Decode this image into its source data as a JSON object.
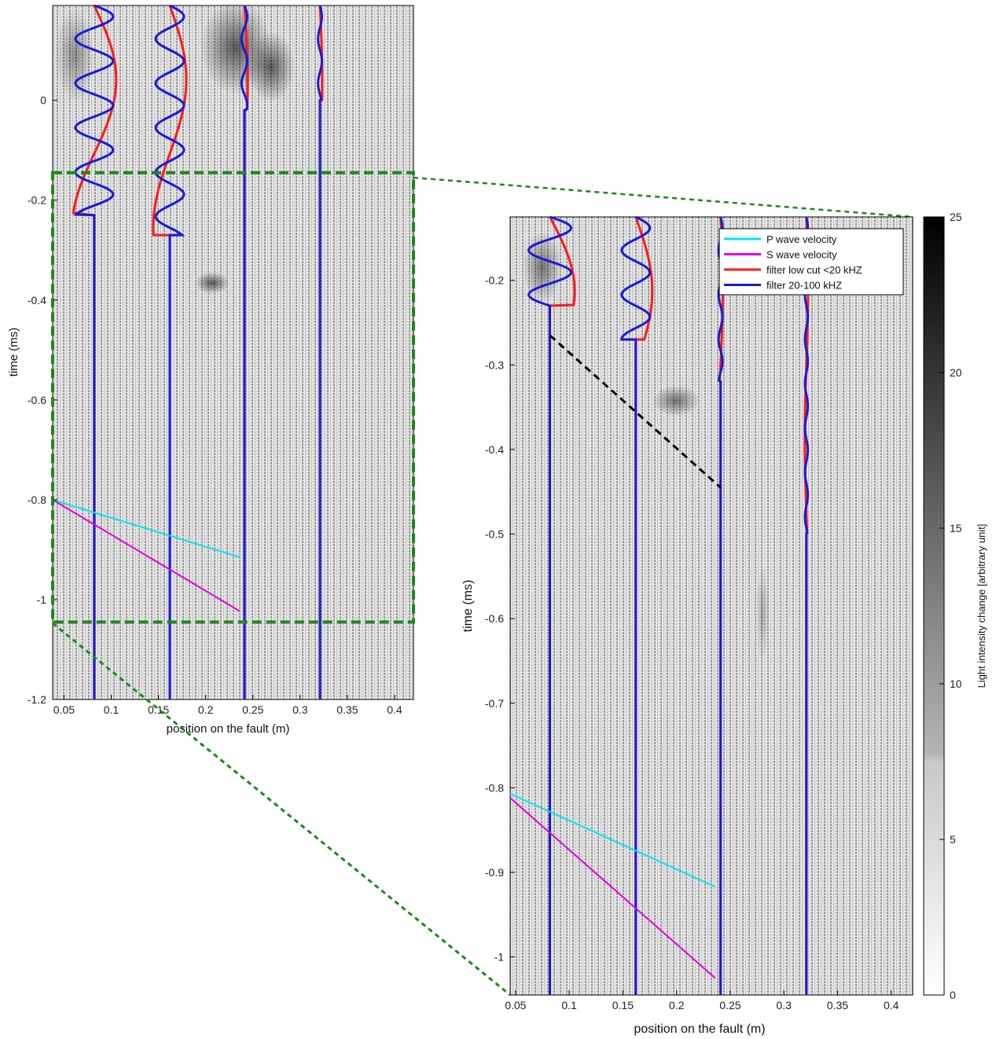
{
  "chart_data": [
    {
      "type": "heatmap",
      "panel": "overview",
      "xlabel": "position on the fault  (m)",
      "ylabel": "time (ms)",
      "xlim": [
        0.038,
        0.42
      ],
      "ylim": [
        -1.2,
        0.19
      ],
      "xticks": [
        0.05,
        0.1,
        0.15,
        0.2,
        0.25,
        0.3,
        0.35,
        0.4
      ],
      "xtick_labels": [
        "0.05",
        "0.1",
        "0.15",
        "0.2",
        "0.25",
        "0.3",
        "0.35",
        "0.4"
      ],
      "yticks": [
        0,
        -0.2,
        -0.4,
        -0.6,
        -0.8,
        -1,
        -1.2
      ],
      "ytick_labels": [
        "0",
        "-0.2",
        "-0.4",
        "-0.6",
        "-0.8",
        "-1",
        "-1.2"
      ],
      "zoom_box": {
        "x": [
          0.038,
          0.42
        ],
        "y": [
          -1.045,
          -0.145
        ]
      },
      "zoom_box_color": "#1a8a1a",
      "sensor_positions": [
        0.082,
        0.162,
        0.241,
        0.321
      ],
      "series": [
        {
          "name": "P wave velocity",
          "color": "#00e5ee",
          "x": [
            0.038,
            0.236
          ],
          "y": [
            -0.8,
            -0.915
          ]
        },
        {
          "name": "S wave velocity",
          "color": "#e000e0",
          "x": [
            0.038,
            0.236
          ],
          "y": [
            -0.8,
            -1.023
          ]
        }
      ]
    },
    {
      "type": "heatmap",
      "panel": "zoom",
      "xlabel": "position on the fault  (m)",
      "ylabel": "time (ms)",
      "xlim": [
        0.045,
        0.42
      ],
      "ylim": [
        -1.045,
        -0.125
      ],
      "xticks": [
        0.05,
        0.1,
        0.15,
        0.2,
        0.25,
        0.3,
        0.35,
        0.4
      ],
      "xtick_labels": [
        "0.05",
        "0.1",
        "0.15",
        "0.2",
        "0.25",
        "0.3",
        "0.35",
        "0.4"
      ],
      "yticks": [
        -0.2,
        -0.3,
        -0.4,
        -0.5,
        -0.6,
        -0.7,
        -0.8,
        -0.9,
        -1
      ],
      "ytick_labels": [
        "-0.2",
        "-0.3",
        "-0.4",
        "-0.5",
        "-0.6",
        "-0.7",
        "-0.8",
        "-0.9",
        "-1"
      ],
      "sensor_positions": [
        0.082,
        0.162,
        0.241,
        0.321
      ],
      "front_line": {
        "x": [
          0.082,
          0.241
        ],
        "y": [
          -0.265,
          -0.445
        ],
        "color": "#000000"
      },
      "series": [
        {
          "name": "P wave velocity",
          "color": "#00e5ee",
          "x": [
            0.045,
            0.236
          ],
          "y": [
            -0.807,
            -0.917
          ]
        },
        {
          "name": "S wave velocity",
          "color": "#e000e0",
          "x": [
            0.045,
            0.236
          ],
          "y": [
            -0.812,
            -1.025
          ]
        },
        {
          "name": "filter low cut <20 kHZ",
          "color": "#ff1a1a"
        },
        {
          "name": "filter 20-100 kHZ",
          "color": "#1a1ad6"
        }
      ],
      "colorbar": {
        "label": "Light intensity change [arbitrary unit]",
        "range": [
          0,
          25
        ],
        "ticks": [
          0,
          5,
          10,
          15,
          20,
          25
        ],
        "tick_labels": [
          "0",
          "5",
          "10",
          "15",
          "20",
          "25"
        ]
      },
      "legend": {
        "placement": "top-right",
        "entries": [
          "P wave velocity",
          "S wave velocity",
          "filter low cut <20 kHZ",
          "filter 20-100 kHZ"
        ]
      }
    }
  ]
}
